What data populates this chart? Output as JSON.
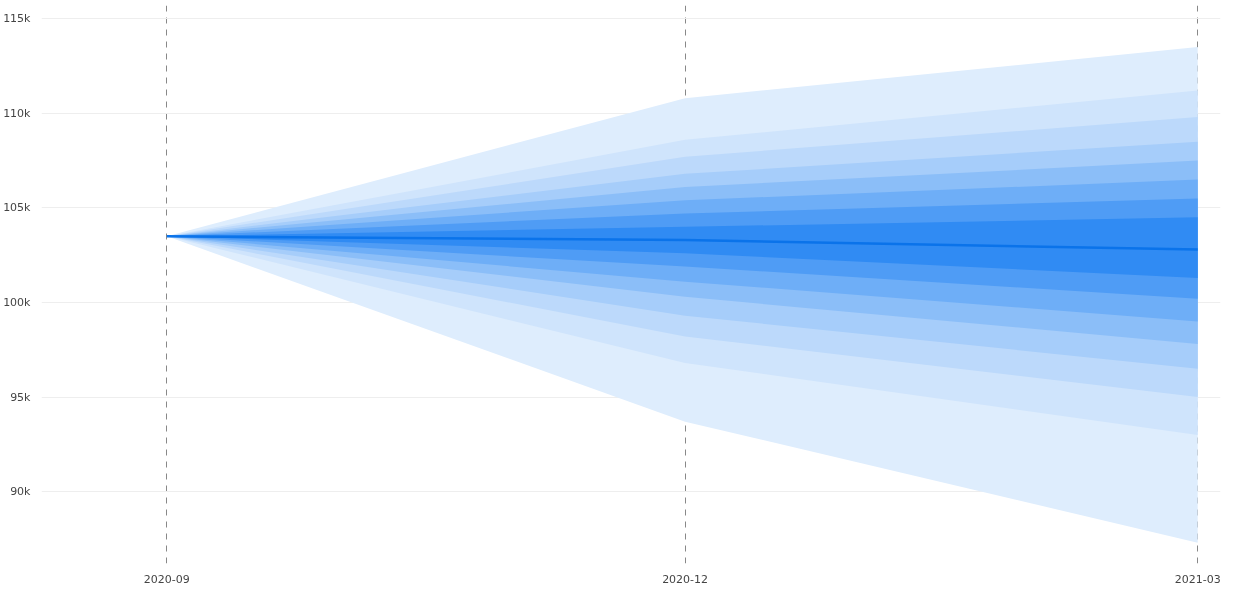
{
  "chart_data": {
    "type": "line",
    "x": [
      "2020-09",
      "2020-12",
      "2021-03"
    ],
    "series": [
      {
        "color": "#deedfd",
        "values": [
          null,
          null,
          null
        ],
        "lower": [
          103500,
          93700,
          87300
        ],
        "upper": [
          103500,
          110800,
          113500
        ]
      },
      {
        "color": "#cfe4fc",
        "values": [
          null,
          null,
          null
        ],
        "lower": [
          103500,
          96800,
          93000
        ],
        "upper": [
          103500,
          108600,
          111200
        ]
      },
      {
        "color": "#bcd9fb",
        "values": [
          null,
          null,
          null
        ],
        "lower": [
          103500,
          98200,
          95000
        ],
        "upper": [
          103500,
          107700,
          109800
        ]
      },
      {
        "color": "#a6cdfa",
        "values": [
          null,
          null,
          null
        ],
        "lower": [
          103500,
          99300,
          96500
        ],
        "upper": [
          103500,
          106800,
          108500
        ]
      },
      {
        "color": "#8bbef8",
        "values": [
          null,
          null,
          null
        ],
        "lower": [
          103500,
          100300,
          97800
        ],
        "upper": [
          103500,
          106100,
          107500
        ]
      },
      {
        "color": "#6eaef7",
        "values": [
          null,
          null,
          null
        ],
        "lower": [
          103500,
          101100,
          99000
        ],
        "upper": [
          103500,
          105400,
          106500
        ]
      },
      {
        "color": "#4f9cf5",
        "values": [
          null,
          null,
          null
        ],
        "lower": [
          103500,
          101900,
          100200
        ],
        "upper": [
          103500,
          104700,
          105500
        ]
      },
      {
        "color": "#308bf3",
        "values": [
          null,
          null,
          null
        ],
        "lower": [
          103500,
          102600,
          101300
        ],
        "upper": [
          103500,
          104000,
          104500
        ]
      },
      {
        "color": "#0a73ea",
        "values": [
          103500,
          103300,
          102800
        ]
      }
    ],
    "xlim": [
      "2020-08-10",
      "2021-03-05"
    ],
    "xticks": [
      "2020-09",
      "2020-12",
      "2021-03"
    ],
    "ylim": [
      86200,
      115700
    ],
    "yticks": [
      {
        "value": 90000,
        "label": "90k"
      },
      {
        "value": 95000,
        "label": "95k"
      },
      {
        "value": 100000,
        "label": "100k"
      },
      {
        "value": 105000,
        "label": "105k"
      },
      {
        "value": 110000,
        "label": "110k"
      },
      {
        "value": 115000,
        "label": "115k"
      }
    ],
    "grid": true
  }
}
